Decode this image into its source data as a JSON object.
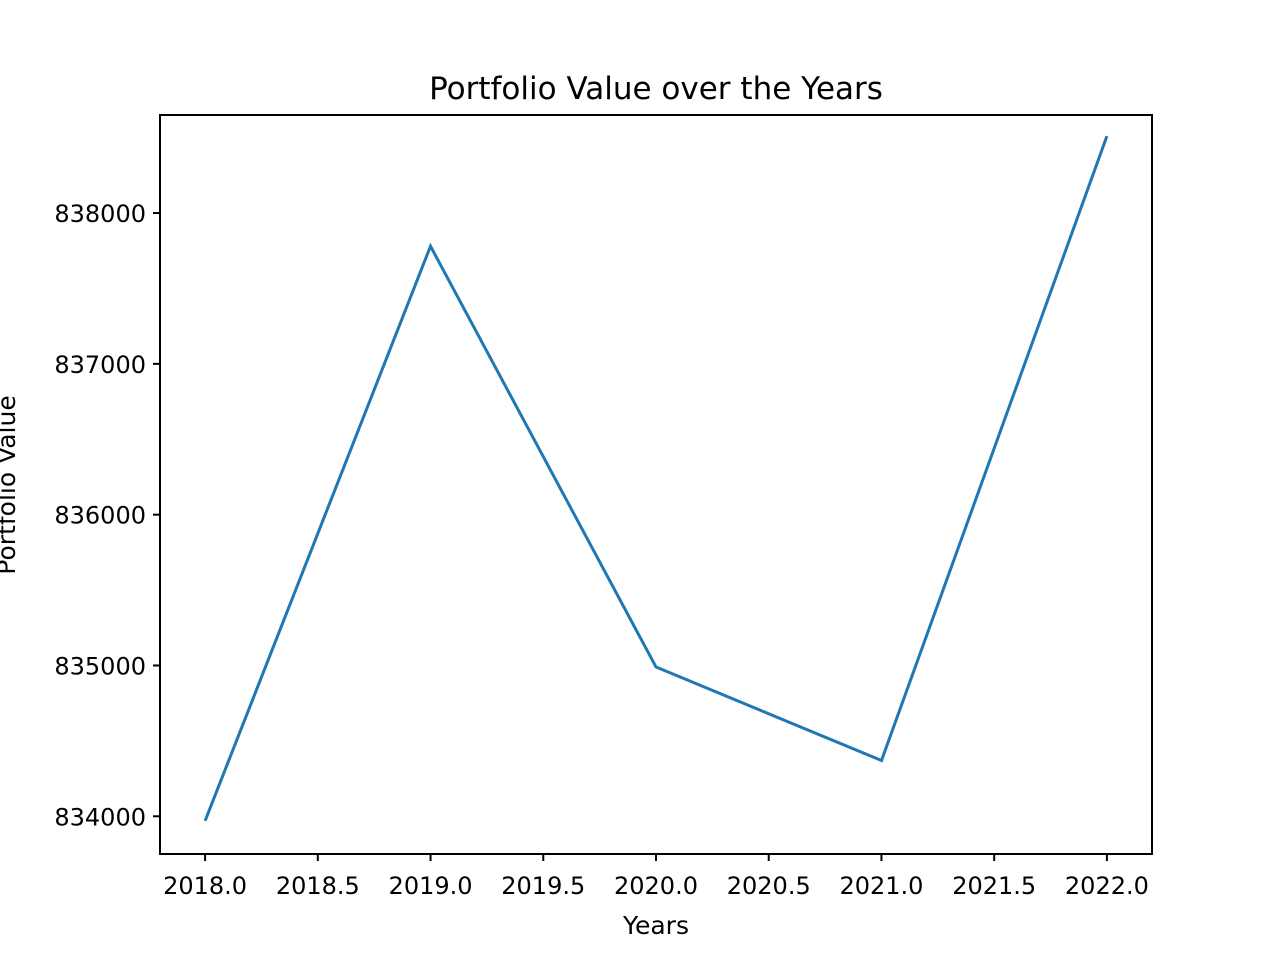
{
  "chart_data": {
    "type": "line",
    "title": "Portfolio Value over the Years",
    "xlabel": "Years",
    "ylabel": "Portfolio Value",
    "xlim": [
      2017.8,
      2022.2
    ],
    "ylim": [
      833750,
      838650
    ],
    "x_ticks": [
      2018.0,
      2018.5,
      2019.0,
      2019.5,
      2020.0,
      2020.5,
      2021.0,
      2021.5,
      2022.0
    ],
    "x_tick_labels": [
      "2018.0",
      "2018.5",
      "2019.0",
      "2019.5",
      "2020.0",
      "2020.5",
      "2021.0",
      "2021.5",
      "2022.0"
    ],
    "y_ticks": [
      834000,
      835000,
      836000,
      837000,
      838000
    ],
    "y_tick_labels": [
      "834000",
      "835000",
      "836000",
      "837000",
      "838000"
    ],
    "grid": false,
    "series": [
      {
        "x": [
          2018,
          2019,
          2020,
          2021,
          2022
        ],
        "values": [
          833970,
          837780,
          834990,
          834370,
          838510
        ],
        "color": "#1f77b4"
      }
    ]
  }
}
